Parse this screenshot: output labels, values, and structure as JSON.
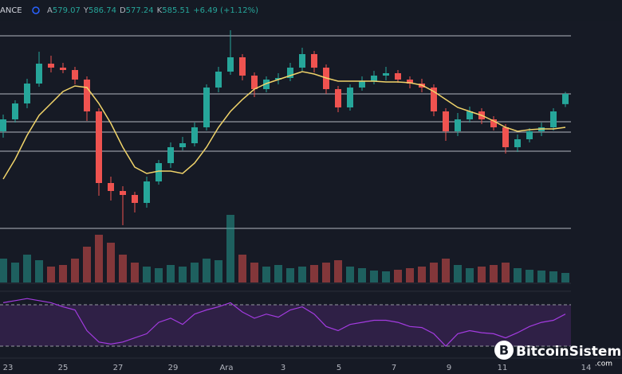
{
  "header": {
    "exchange": "ANCE",
    "labels": [
      "A",
      "Y",
      "D",
      "K"
    ],
    "change": "+6.49 (+1.12%)"
  },
  "chart_data": {
    "type": "candlestick",
    "open": [
      562,
      569.5,
      579.5,
      592,
      604.5,
      602,
      600.5,
      594.5,
      574.5,
      529.5,
      524.5,
      522,
      517,
      530.5,
      542,
      552,
      554.5,
      564.5,
      589.5,
      599.5,
      608.5,
      597,
      588.5,
      594.5,
      595.5,
      602,
      610.5,
      602,
      588.5,
      577,
      589.5,
      593.5,
      597,
      598.5,
      594.5,
      592,
      589.5,
      574.5,
      562,
      569.5,
      574.5,
      569.5,
      564.5,
      552,
      557,
      562,
      564.5,
      579.07
    ],
    "high": [
      572.5,
      581.5,
      595,
      612,
      609.5,
      605,
      602.5,
      596.5,
      576.5,
      533.5,
      527.5,
      524,
      533.5,
      544,
      555,
      558.5,
      567.5,
      591.5,
      602.5,
      625.5,
      610.5,
      599,
      596.5,
      598.5,
      605,
      614.5,
      612.5,
      604,
      590.5,
      591.5,
      596.5,
      600,
      602.5,
      600.5,
      596.5,
      595,
      591.5,
      576.5,
      573.5,
      577.5,
      576.5,
      571.5,
      566.5,
      560,
      564,
      567.5,
      576.5,
      586.74
    ],
    "low": [
      558,
      567.5,
      576.5,
      590,
      599,
      598.5,
      591.5,
      568.5,
      521.5,
      518.5,
      503,
      511,
      514,
      528.5,
      539,
      550,
      552.5,
      562.5,
      586.5,
      597.5,
      594,
      583.5,
      586.5,
      591.5,
      593.5,
      600,
      599,
      585.5,
      574,
      575,
      587.5,
      591.5,
      594,
      592.5,
      589,
      586.5,
      571.5,
      556,
      559,
      567.5,
      566.5,
      562.5,
      548,
      549,
      555,
      559,
      562.5,
      577.24
    ],
    "close": [
      569.5,
      579.5,
      592,
      604.5,
      602,
      600.5,
      594.5,
      574.5,
      529.5,
      524.5,
      522,
      517,
      530.5,
      542,
      552,
      554.5,
      564.5,
      589.5,
      599.5,
      608.5,
      597,
      588.5,
      594.5,
      595.5,
      602,
      610.5,
      602,
      588.5,
      577,
      589.5,
      593.5,
      597,
      598.5,
      594.5,
      592,
      589.5,
      574.5,
      562,
      569.5,
      574.5,
      569.5,
      564.5,
      552,
      557,
      562,
      564.5,
      574.5,
      585.51
    ],
    "ma": [
      532,
      544.5,
      559.5,
      572,
      579.5,
      587,
      590.5,
      589.5,
      579.5,
      567,
      552,
      539.5,
      535.5,
      537,
      537,
      535.5,
      542,
      552,
      564.5,
      574.5,
      582,
      588.5,
      592,
      594.5,
      597,
      599.5,
      598,
      595.5,
      593.5,
      593.5,
      593.5,
      593.5,
      593,
      593,
      592.5,
      591,
      587,
      582,
      577,
      574.5,
      572,
      568.5,
      564.5,
      562,
      563,
      563.5,
      563.5,
      564.5
    ],
    "volume": [
      30,
      25,
      35,
      28,
      20,
      22,
      30,
      45,
      60,
      50,
      35,
      25,
      20,
      18,
      22,
      20,
      25,
      30,
      28,
      85,
      35,
      25,
      20,
      22,
      18,
      20,
      22,
      25,
      28,
      20,
      18,
      15,
      14,
      16,
      18,
      20,
      25,
      30,
      22,
      18,
      20,
      22,
      25,
      18,
      16,
      15,
      14,
      12
    ],
    "rsi": [
      72,
      74,
      76,
      74,
      72,
      68,
      65,
      45,
      34,
      32,
      34,
      38,
      42,
      53,
      57,
      51,
      61,
      65,
      68,
      72,
      63,
      57,
      61,
      58,
      65,
      68,
      61,
      49,
      45,
      51,
      53,
      55,
      55,
      53,
      49,
      48,
      42,
      30,
      42,
      45,
      43,
      42,
      38,
      43,
      49,
      53,
      55,
      61
    ],
    "levels": [
      622,
      585.5,
      568,
      561.5,
      549.5,
      501
    ],
    "ylim": [
      499.5,
      644.5
    ],
    "volume_lim": [
      0,
      100
    ],
    "rsi_lim": [
      20,
      80
    ],
    "rsi_levels": [
      70,
      30
    ],
    "x_labels": [
      "23",
      "25",
      "27",
      "29",
      "Ara",
      "3",
      "5",
      "7",
      "9",
      "11",
      "14"
    ],
    "up_color": "#26a69a",
    "down_color": "#ef5350",
    "ma_color": "#f0d36a",
    "rsi_color": "#a33be0"
  },
  "watermark": {
    "brand": "BitcoinSistemi",
    "suffix": ".com",
    "logo": "B"
  }
}
